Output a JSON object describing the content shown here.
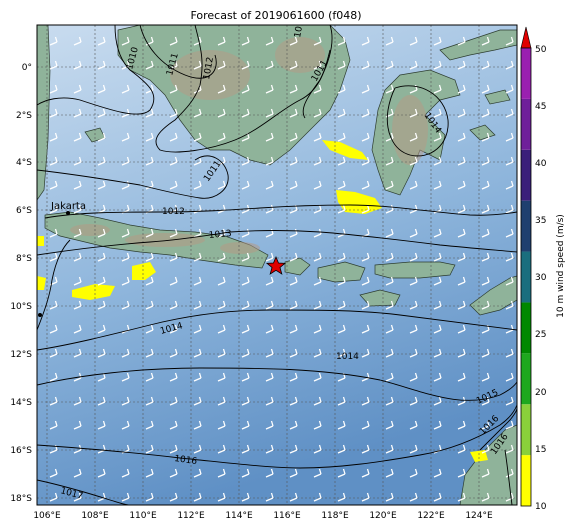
{
  "title": "Forecast of 2019061600 (f048)",
  "map": {
    "lon_min": 105.5,
    "lon_max": 125.8,
    "lat_min": -18.5,
    "lat_max": 1.8,
    "lon_ticks": [
      "106°E",
      "108°E",
      "110°E",
      "112°E",
      "114°E",
      "116°E",
      "118°E",
      "120°E",
      "122°E",
      "124°E"
    ],
    "lat_ticks": [
      "0°",
      "2°S",
      "4°S",
      "6°S",
      "8°S",
      "10°S",
      "12°S",
      "14°S",
      "16°S",
      "18°S"
    ],
    "gridlines": true,
    "ocean_color": "#7aa6d2",
    "land_color": "#8fb39a",
    "wind_barb_color": "#ffffff"
  },
  "isobars": [
    "1010",
    "1011",
    "1011",
    "1012",
    "1012",
    "1013",
    "1014",
    "1014",
    "1014",
    "1015",
    "1016",
    "1016",
    "1016",
    "1017",
    "1011",
    "1014"
  ],
  "city": {
    "name": "Jakarta",
    "lon": 106.8,
    "lat": -6.2
  },
  "marker": {
    "type": "red-star",
    "lon": 115.5,
    "lat": -8.4
  },
  "colorbar": {
    "label": "10 m wind speed (m/s)",
    "ticks": [
      "10",
      "15",
      "20",
      "25",
      "30",
      "35",
      "40",
      "45",
      "50"
    ],
    "colors": [
      "#ffff00",
      "#8ad03a",
      "#1ea81e",
      "#008800",
      "#1a6e7e",
      "#1f3f6f",
      "#3a1f7a",
      "#6f1f9a",
      "#9a20b0"
    ],
    "extend_color": "#e00000"
  }
}
